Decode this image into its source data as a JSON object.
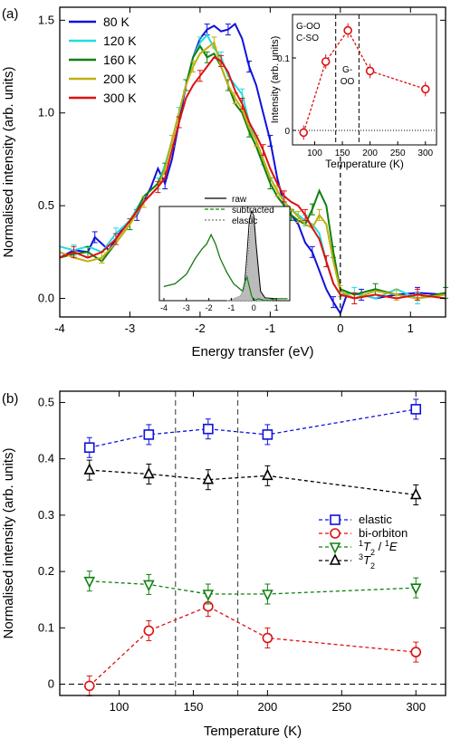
{
  "chart_data": [
    {
      "panel": "(a)",
      "type": "line",
      "xlabel": "Energy transfer (eV)",
      "ylabel": "Normalised intensity (arb. units)",
      "xlim": [
        -4,
        1.5
      ],
      "ylim": [
        -0.1,
        1.57
      ],
      "xticks": [
        "-4",
        "-3",
        "-2",
        "-1",
        "0",
        "1"
      ],
      "yticks": [
        "0.0",
        "0.5",
        "1.0",
        "1.5"
      ],
      "legend_position": "top-left",
      "series": [
        {
          "name": "80 K",
          "color": "#1010dd",
          "x": [
            -4,
            -3.8,
            -3.6,
            -3.5,
            -3.3,
            -3.1,
            -2.9,
            -2.7,
            -2.6,
            -2.5,
            -2.4,
            -2.3,
            -2.2,
            -2.1,
            -2.0,
            -1.9,
            -1.8,
            -1.7,
            -1.6,
            -1.5,
            -1.4,
            -1.3,
            -1.2,
            -1.1,
            -1.0,
            -0.9,
            -0.8,
            -0.7,
            -0.6,
            -0.5,
            -0.4,
            -0.3,
            -0.2,
            -0.1,
            0,
            0.1,
            0.3,
            0.5,
            0.8,
            1.1,
            1.5
          ],
          "y": [
            0.22,
            0.26,
            0.25,
            0.33,
            0.26,
            0.38,
            0.45,
            0.6,
            0.7,
            0.62,
            0.75,
            0.95,
            1.15,
            1.3,
            1.4,
            1.45,
            1.47,
            1.44,
            1.45,
            1.48,
            1.4,
            1.25,
            1.15,
            1.0,
            0.85,
            0.65,
            0.5,
            0.45,
            0.4,
            0.3,
            0.25,
            0.15,
            0.05,
            -0.02,
            -0.08,
            0.03,
            0.02,
            0.0,
            0.02,
            0.03,
            0.02
          ]
        },
        {
          "name": "120 K",
          "color": "#22dddd",
          "x": [
            -4,
            -3.8,
            -3.6,
            -3.4,
            -3.2,
            -3.0,
            -2.8,
            -2.6,
            -2.5,
            -2.4,
            -2.3,
            -2.2,
            -2.1,
            -2.0,
            -1.9,
            -1.8,
            -1.7,
            -1.6,
            -1.5,
            -1.4,
            -1.3,
            -1.2,
            -1.1,
            -1.0,
            -0.9,
            -0.8,
            -0.7,
            -0.6,
            -0.5,
            -0.4,
            -0.3,
            -0.2,
            -0.1,
            0,
            0.2,
            0.5,
            0.8,
            1.1,
            1.5
          ],
          "y": [
            0.28,
            0.26,
            0.28,
            0.25,
            0.35,
            0.42,
            0.55,
            0.62,
            0.72,
            0.85,
            1.0,
            1.15,
            1.3,
            1.38,
            1.42,
            1.35,
            1.3,
            1.2,
            1.15,
            1.1,
            0.95,
            0.85,
            0.75,
            0.65,
            0.58,
            0.52,
            0.48,
            0.45,
            0.42,
            0.4,
            0.35,
            0.2,
            0.08,
            0.02,
            0.03,
            0.0,
            0.05,
            0.0,
            0.02
          ]
        },
        {
          "name": "160 K",
          "color": "#108010",
          "x": [
            -4,
            -3.8,
            -3.6,
            -3.4,
            -3.2,
            -3.0,
            -2.8,
            -2.6,
            -2.5,
            -2.4,
            -2.3,
            -2.2,
            -2.1,
            -2.0,
            -1.9,
            -1.8,
            -1.7,
            -1.6,
            -1.5,
            -1.4,
            -1.3,
            -1.2,
            -1.1,
            -1.0,
            -0.9,
            -0.8,
            -0.7,
            -0.6,
            -0.5,
            -0.4,
            -0.3,
            -0.2,
            -0.1,
            0,
            0.2,
            0.5,
            0.8,
            1.1,
            1.5
          ],
          "y": [
            0.22,
            0.24,
            0.25,
            0.2,
            0.3,
            0.4,
            0.55,
            0.62,
            0.7,
            0.85,
            1.0,
            1.15,
            1.3,
            1.36,
            1.3,
            1.32,
            1.25,
            1.15,
            1.05,
            1.0,
            0.9,
            0.82,
            0.72,
            0.62,
            0.55,
            0.5,
            0.45,
            0.42,
            0.4,
            0.48,
            0.58,
            0.5,
            0.25,
            0.05,
            0.02,
            0.05,
            0.02,
            0.0,
            0.03
          ]
        },
        {
          "name": "200 K",
          "color": "#c0b010",
          "x": [
            -4,
            -3.8,
            -3.6,
            -3.4,
            -3.2,
            -3.0,
            -2.8,
            -2.6,
            -2.5,
            -2.4,
            -2.3,
            -2.2,
            -2.1,
            -2.0,
            -1.9,
            -1.8,
            -1.7,
            -1.6,
            -1.5,
            -1.4,
            -1.3,
            -1.2,
            -1.1,
            -1.0,
            -0.9,
            -0.8,
            -0.7,
            -0.6,
            -0.5,
            -0.4,
            -0.3,
            -0.2,
            -0.1,
            0,
            0.2,
            0.5,
            0.8,
            1.1,
            1.5
          ],
          "y": [
            0.25,
            0.22,
            0.2,
            0.22,
            0.3,
            0.4,
            0.52,
            0.6,
            0.7,
            0.85,
            1.0,
            1.15,
            1.25,
            1.32,
            1.35,
            1.38,
            1.25,
            1.15,
            1.08,
            1.02,
            0.92,
            0.85,
            0.75,
            0.65,
            0.58,
            0.52,
            0.48,
            0.44,
            0.4,
            0.38,
            0.45,
            0.4,
            0.2,
            0.04,
            0.0,
            0.04,
            0.02,
            0.0,
            0.02
          ]
        },
        {
          "name": "300 K",
          "color": "#dd1010",
          "x": [
            -4,
            -3.8,
            -3.6,
            -3.4,
            -3.2,
            -3.0,
            -2.8,
            -2.6,
            -2.5,
            -2.4,
            -2.3,
            -2.2,
            -2.1,
            -2.0,
            -1.9,
            -1.8,
            -1.7,
            -1.6,
            -1.5,
            -1.4,
            -1.3,
            -1.2,
            -1.1,
            -1.0,
            -0.9,
            -0.8,
            -0.7,
            -0.6,
            -0.5,
            -0.4,
            -0.3,
            -0.2,
            -0.1,
            0,
            0.2,
            0.5,
            0.8,
            1.1,
            1.5
          ],
          "y": [
            0.22,
            0.25,
            0.22,
            0.25,
            0.32,
            0.42,
            0.52,
            0.6,
            0.65,
            0.8,
            0.95,
            1.08,
            1.15,
            1.2,
            1.25,
            1.3,
            1.28,
            1.22,
            1.12,
            1.05,
            0.95,
            0.88,
            0.8,
            0.7,
            0.62,
            0.55,
            0.52,
            0.5,
            0.45,
            0.38,
            0.32,
            0.2,
            0.08,
            0.02,
            0.0,
            0.02,
            0.0,
            0.02,
            0.0
          ]
        }
      ]
    },
    {
      "panel": "(a) inset top-right",
      "type": "line",
      "xlabel": "Temperature (K)",
      "ylabel": "Intensity (arb. units)",
      "xlim": [
        60,
        320
      ],
      "ylim": [
        -0.02,
        0.16
      ],
      "xticks": [
        "100",
        "150",
        "200",
        "250",
        "300"
      ],
      "yticks": [
        "0",
        "0.1"
      ],
      "annotations": [
        "G-OO",
        "C-SO",
        "G-",
        "OO"
      ],
      "series": [
        {
          "name": "bi-orbiton",
          "color": "#dd1010",
          "x": [
            80,
            120,
            160,
            200,
            300
          ],
          "y": [
            -0.003,
            0.095,
            0.138,
            0.082,
            0.057
          ]
        }
      ]
    },
    {
      "panel": "(a) inset bottom",
      "type": "area",
      "xlim": [
        -4.2,
        1.6
      ],
      "ylim": [
        0,
        1.0
      ],
      "xticks": [
        "-4",
        "-3",
        "-2",
        "-1",
        "0",
        "1"
      ],
      "legend": [
        "raw",
        "subtracted",
        "elastic"
      ],
      "series": [
        {
          "name": "raw",
          "color": "#000000",
          "x": [
            -4,
            -3.5,
            -3,
            -2.6,
            -2.3,
            -2.1,
            -1.9,
            -1.7,
            -1.5,
            -1.2,
            -0.9,
            -0.6,
            -0.5,
            -0.4,
            -0.3,
            -0.2,
            -0.1,
            0,
            0.1,
            0.3,
            0.5,
            1.0,
            1.5
          ],
          "y": [
            0.15,
            0.18,
            0.28,
            0.45,
            0.55,
            0.6,
            0.7,
            0.6,
            0.45,
            0.3,
            0.18,
            0.12,
            0.1,
            0.2,
            0.5,
            0.85,
            0.95,
            0.9,
            0.6,
            0.1,
            0.03,
            0.02,
            0.02
          ]
        },
        {
          "name": "subtracted",
          "color": "#108010",
          "x": [
            -4,
            -3.5,
            -3,
            -2.6,
            -2.3,
            -2.1,
            -1.9,
            -1.7,
            -1.5,
            -1.2,
            -0.9,
            -0.6,
            -0.5,
            -0.4,
            -0.3,
            -0.2,
            -0.1,
            0,
            0.2,
            0.5,
            1.0,
            1.5
          ],
          "y": [
            0.15,
            0.18,
            0.28,
            0.45,
            0.55,
            0.6,
            0.7,
            0.6,
            0.45,
            0.3,
            0.18,
            0.12,
            0.1,
            0.2,
            0.25,
            0.15,
            0.05,
            0.0,
            0.02,
            0.0,
            0.02,
            0.02
          ]
        },
        {
          "name": "elastic",
          "color": "#777777",
          "x": [
            -1.2,
            -0.9,
            -0.6,
            -0.4,
            -0.3,
            -0.2,
            -0.1,
            0,
            0.1,
            0.2,
            0.3,
            0.5,
            0.8
          ],
          "y": [
            0.0,
            0.02,
            0.05,
            0.15,
            0.3,
            0.65,
            0.9,
            0.88,
            0.6,
            0.3,
            0.1,
            0.02,
            0.0
          ]
        }
      ]
    },
    {
      "panel": "(b)",
      "type": "line",
      "xlabel": "Temperature (K)",
      "ylabel": "Normalised intensity (arb. units)",
      "xlim": [
        60,
        320
      ],
      "ylim": [
        -0.02,
        0.52
      ],
      "xticks": [
        "100",
        "150",
        "200",
        "250",
        "300"
      ],
      "yticks": [
        "0",
        "0.1",
        "0.2",
        "0.3",
        "0.4",
        "0.5"
      ],
      "legend_position": "right",
      "series": [
        {
          "name": "elastic",
          "color": "#1010dd",
          "marker": "square",
          "x": [
            80,
            120,
            160,
            200,
            300
          ],
          "y": [
            0.42,
            0.443,
            0.453,
            0.443,
            0.488
          ]
        },
        {
          "name": "bi-orbiton",
          "color": "#dd1010",
          "marker": "circle",
          "x": [
            80,
            120,
            160,
            200,
            300
          ],
          "y": [
            -0.003,
            0.095,
            0.138,
            0.082,
            0.057
          ]
        },
        {
          "name": "¹T₂ / ¹E",
          "color": "#108010",
          "marker": "triangle-down",
          "x": [
            80,
            120,
            160,
            200,
            300
          ],
          "y": [
            0.183,
            0.177,
            0.16,
            0.16,
            0.171
          ]
        },
        {
          "name": "³T₂",
          "color": "#000000",
          "marker": "triangle-up",
          "x": [
            80,
            120,
            160,
            200,
            300
          ],
          "y": [
            0.38,
            0.373,
            0.363,
            0.37,
            0.336
          ]
        }
      ]
    }
  ],
  "labels": {
    "panel_a": "(a)",
    "panel_b": "(b)",
    "inset_g_oo": "G-OO",
    "inset_c_so": "C-SO",
    "inset_g_dash": "G-",
    "inset_oo": "OO",
    "legend_b_elastic": "elastic",
    "legend_b_biorbiton": "bi-orbiton",
    "legend_b_t2_1": "T",
    "legend_b_t2_3": "T"
  }
}
